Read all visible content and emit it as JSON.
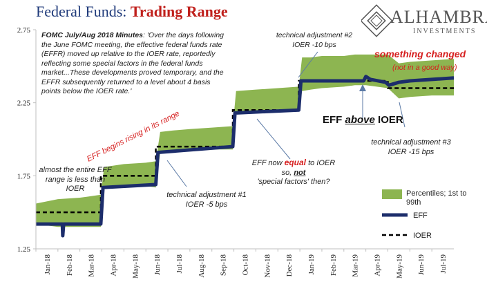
{
  "title": {
    "part1": "Federal Funds:",
    "part2": "Trading Range"
  },
  "brand": {
    "name": "ALHAMBRA",
    "sub": "INVESTMENTS"
  },
  "colors": {
    "band": "#8db551",
    "eff": "#1c2d6b",
    "ioer": "#000000",
    "axis": "#bfbfbf",
    "red": "#d61f1f",
    "title_blue": "#1f3a7a"
  },
  "annotations": {
    "fomc_bold": "FOMC July/Aug 2018 Minutes",
    "fomc_text": ": 'Over the days following the June FOMC meeting, the effective federal funds rate (EFFR) moved up relative to the IOER rate, reportedly reflecting some special factors in the federal funds market...These developments proved temporary, and the EFFR subsequently returned to a level about 4 basis points below the IOER rate.'",
    "adj2_line1": "technical adjustment #2",
    "adj2_line2": "IOER -10 bps",
    "something_changed": "something changed",
    "not_good_way": "(not in a good way)",
    "eff_begins": "EFF begins rising in its range",
    "eff_above_1": "EFF",
    "eff_above_2": "above",
    "eff_above_3": "IOER",
    "range_less": "almost the entire EFF range is less than IOER",
    "equal_1": "EFF now",
    "equal_2": "equal",
    "equal_3": "to IOER",
    "equal_4": "so,",
    "equal_5": "not",
    "equal_6": "'special factors' then?",
    "adj1_line1": "technical adjustment #1",
    "adj1_line2": "IOER -5 bps",
    "adj3_line1": "technical adjustment #3",
    "adj3_line2": "IOER -15 bps"
  },
  "legend": {
    "band": "Percentiles; 1st to 99th",
    "eff": "EFF",
    "ioer": "IOER"
  },
  "chart_data": {
    "type": "area",
    "title": "Federal Funds: Trading Range",
    "x_tick_labels": [
      "Jan-18",
      "Feb-18",
      "Mar-18",
      "Apr-18",
      "May-18",
      "Jun-18",
      "Jul-18",
      "Aug-18",
      "Sep-18",
      "Oct-18",
      "Nov-18",
      "Dec-18",
      "Jan-19",
      "Feb-19",
      "Mar-19",
      "Apr-19",
      "May-19",
      "Jun-19",
      "Jul-19"
    ],
    "xlim": [
      0,
      19
    ],
    "ylim": [
      1.25,
      2.75
    ],
    "y_ticks": [
      1.25,
      1.75,
      2.25,
      2.75
    ],
    "y_tick_labels": [
      "1.25",
      "1.75",
      "2.25",
      "2.75"
    ],
    "grid": false,
    "legend_position": "right",
    "series": [
      {
        "name": "Percentiles; 1st to 99th",
        "kind": "band",
        "x": [
          0,
          1,
          2,
          2.95,
          3.1,
          4,
          5,
          5.45,
          5.65,
          6.2,
          7,
          8,
          8.95,
          9.1,
          10,
          11,
          11.95,
          12.1,
          12.5,
          13,
          14,
          14.5,
          15,
          15.5,
          16,
          16.5,
          17,
          18,
          19
        ],
        "low": [
          1.42,
          1.4,
          1.4,
          1.4,
          1.66,
          1.67,
          1.68,
          1.67,
          1.91,
          1.92,
          1.93,
          1.93,
          1.93,
          2.18,
          2.19,
          2.19,
          2.2,
          2.33,
          2.34,
          2.35,
          2.36,
          2.37,
          2.37,
          2.36,
          2.35,
          2.28,
          2.29,
          2.3,
          2.3
        ],
        "high": [
          1.56,
          1.59,
          1.6,
          1.62,
          1.81,
          1.83,
          1.84,
          1.85,
          2.05,
          2.06,
          2.07,
          2.08,
          2.09,
          2.33,
          2.34,
          2.35,
          2.36,
          2.56,
          2.56,
          2.57,
          2.57,
          2.58,
          2.58,
          2.58,
          2.58,
          2.52,
          2.53,
          2.54,
          2.55
        ]
      },
      {
        "name": "EFF",
        "kind": "line",
        "x": [
          0,
          1,
          1.2,
          1.22,
          1.26,
          2,
          2.95,
          3.05,
          5.45,
          5.55,
          8.95,
          9.05,
          11.95,
          12.05,
          14.9,
          15.0,
          15.2,
          15.9,
          16.05,
          16.5,
          17,
          18,
          19
        ],
        "y": [
          1.42,
          1.42,
          1.42,
          1.34,
          1.42,
          1.42,
          1.42,
          1.67,
          1.69,
          1.91,
          1.95,
          2.18,
          2.2,
          2.4,
          2.4,
          2.43,
          2.41,
          2.39,
          2.37,
          2.39,
          2.4,
          2.41,
          2.42
        ]
      },
      {
        "name": "IOER",
        "kind": "step",
        "x": [
          0,
          2.95,
          2.95,
          5.45,
          5.45,
          8.95,
          8.95,
          11.95,
          11.95,
          16.0,
          16.0,
          19
        ],
        "y": [
          1.5,
          1.5,
          1.75,
          1.75,
          1.95,
          1.95,
          2.2,
          2.2,
          2.4,
          2.4,
          2.35,
          2.35
        ]
      }
    ]
  }
}
